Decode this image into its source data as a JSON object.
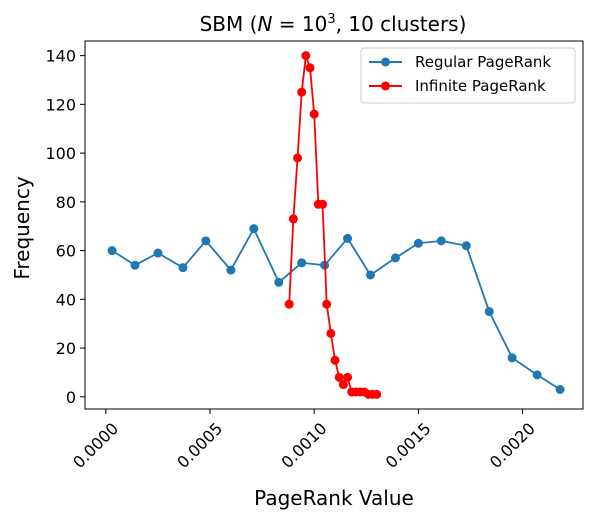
{
  "chart_data": {
    "type": "line",
    "title_prefix": "SBM (",
    "title_math_N": "N",
    "title_math_eq": " = 10",
    "title_math_exp": "3",
    "title_suffix": ", 10 clusters)",
    "title": "SBM (N = 10^3, 10 clusters)",
    "xlabel": "PageRank Value",
    "ylabel": "Frequency",
    "xlim": [
      -0.0001,
      0.00229
    ],
    "ylim": [
      -5,
      146
    ],
    "xticks": [
      0.0,
      0.0005,
      0.001,
      0.0015,
      0.002
    ],
    "xtick_labels": [
      "0.0000",
      "0.0005",
      "0.0010",
      "0.0015",
      "0.0020"
    ],
    "yticks": [
      0,
      20,
      40,
      60,
      80,
      100,
      120,
      140
    ],
    "ytick_labels": [
      "0",
      "20",
      "40",
      "60",
      "80",
      "100",
      "120",
      "140"
    ],
    "grid": false,
    "legend_position": "top-right",
    "series": [
      {
        "name": "Regular PageRank",
        "color": "#1f77b4",
        "x": [
          3e-05,
          0.00014,
          0.00025,
          0.00037,
          0.00048,
          0.0006,
          0.00071,
          0.00083,
          0.00094,
          0.00105,
          0.00116,
          0.00127,
          0.00139,
          0.0015,
          0.00161,
          0.00173,
          0.00184,
          0.00195,
          0.00207,
          0.00218
        ],
        "y": [
          60,
          54,
          59,
          53,
          64,
          52,
          69,
          47,
          55,
          54,
          65,
          50,
          57,
          63,
          64,
          62,
          35,
          16,
          9,
          3
        ]
      },
      {
        "name": "Infinite PageRank",
        "color": "#ff0000",
        "x": [
          0.00088,
          0.0009,
          0.00092,
          0.00094,
          0.00096,
          0.00098,
          0.001,
          0.00102,
          0.00104,
          0.00106,
          0.00108,
          0.0011,
          0.00112,
          0.00114,
          0.00116,
          0.00118,
          0.0012,
          0.00122,
          0.00124,
          0.00126,
          0.00128,
          0.0013
        ],
        "y": [
          38,
          73,
          98,
          125,
          140,
          135,
          116,
          79,
          79,
          38,
          26,
          15,
          8,
          5,
          8,
          2,
          2,
          2,
          2,
          1,
          1,
          1
        ]
      }
    ]
  }
}
